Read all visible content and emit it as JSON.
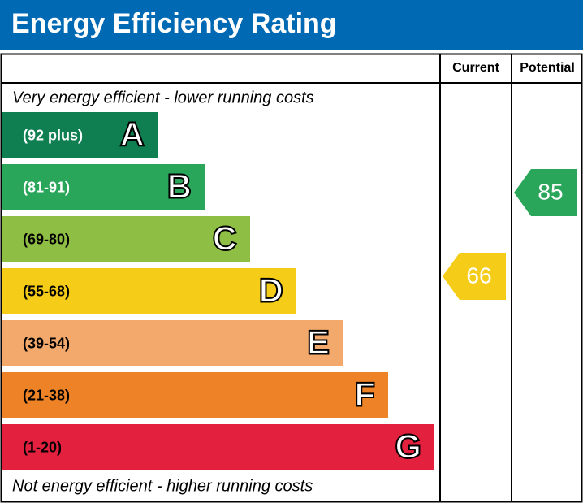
{
  "header": {
    "title": "Energy Efficiency Rating"
  },
  "columns": {
    "current": "Current",
    "potential": "Potential"
  },
  "top_note": "Very energy efficient - lower running costs",
  "bottom_note": "Not energy efficient - higher running costs",
  "bands": [
    {
      "range": "(92 plus)",
      "letter": "A",
      "color": "#0f7f52",
      "text_color": "#ffffff"
    },
    {
      "range": "(81-91)",
      "letter": "B",
      "color": "#2aa65a",
      "text_color": "#ffffff"
    },
    {
      "range": "(69-80)",
      "letter": "C",
      "color": "#8fbe44",
      "text_color": "#000000"
    },
    {
      "range": "(55-68)",
      "letter": "D",
      "color": "#f5cc18",
      "text_color": "#000000"
    },
    {
      "range": "(39-54)",
      "letter": "E",
      "color": "#f2a96b",
      "text_color": "#000000"
    },
    {
      "range": "(21-38)",
      "letter": "F",
      "color": "#ee8227",
      "text_color": "#000000"
    },
    {
      "range": "(1-20)",
      "letter": "G",
      "color": "#e3203e",
      "text_color": "#000000"
    }
  ],
  "current": {
    "value": "66",
    "color": "#f5cc18"
  },
  "potential": {
    "value": "85",
    "color": "#2aa65a"
  }
}
